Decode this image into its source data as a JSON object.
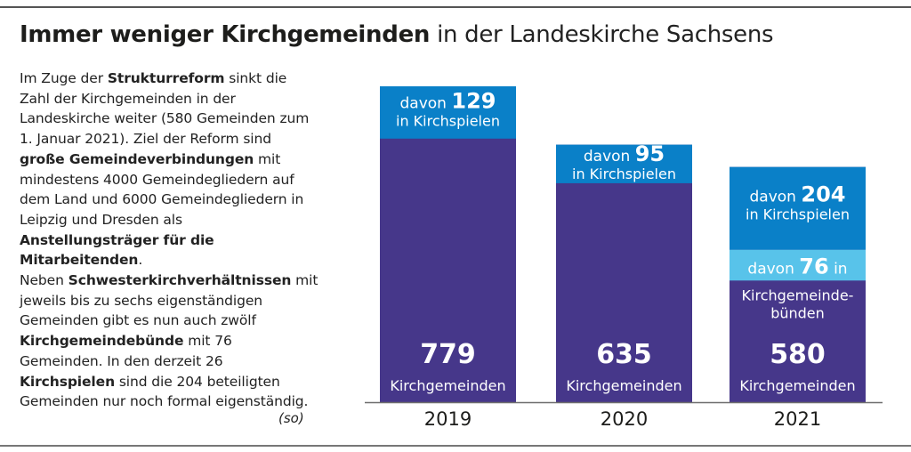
{
  "title": {
    "bold": "Immer weniger Kirchgemeinden",
    "light": "in der Landeskirche Sachsens"
  },
  "text": {
    "p1": [
      {
        "t": "Im Zuge der ",
        "b": false
      },
      {
        "t": "Strukturreform",
        "b": true
      },
      {
        "t": " sinkt die Zahl der Kirchgemeinden in der Landeskirche weiter (580 Gemeinden zum 1. Januar 2021). Ziel der Reform sind ",
        "b": false
      },
      {
        "t": "große Gemeindeverbindungen",
        "b": true
      },
      {
        "t": " mit mindestens 4000 Gemeinde­gliedern auf dem Land und 6000 Gemeindegliedern in Leipzig und Dresden als ",
        "b": false
      },
      {
        "t": "Anstellungsträger für die Mitarbeitenden",
        "b": true
      },
      {
        "t": ".",
        "b": false
      }
    ],
    "p2": [
      {
        "t": "Neben ",
        "b": false
      },
      {
        "t": "Schwesterkirchverhältnissen",
        "b": true
      },
      {
        "t": " mit jeweils bis zu sechs eigen­ständigen Gemeinden gibt es nun auch zwölf ",
        "b": false
      },
      {
        "t": "Kirchgemeindebünde",
        "b": true
      },
      {
        "t": " mit 76 Gemeinden. In den derzeit 26 ",
        "b": false
      },
      {
        "t": "Kirchspielen",
        "b": true
      },
      {
        "t": " sind die 204 betei­ligten Gemeinden nur noch formal eigenständig.",
        "b": false
      }
    ],
    "source": "(so)"
  },
  "colors": {
    "total": "#46378a",
    "kirchspiele": "#0a80c8",
    "kirchgemeindebuende": "#58c3ea",
    "axis": "#6e6e6e"
  },
  "chart_data": {
    "type": "bar",
    "categories": [
      "2019",
      "2020",
      "2021"
    ],
    "total_unit_label": "Kirchgemeinden",
    "series": [
      {
        "name": "Kirchgemeinden",
        "values": [
          779,
          635,
          580
        ]
      },
      {
        "name": "in Kirchspielen",
        "values": [
          129,
          95,
          204
        ]
      },
      {
        "name": "in Kirchgemeindebünden",
        "values": [
          null,
          null,
          76
        ]
      }
    ],
    "annotations": [
      {
        "year": "2019",
        "prefix": "davon",
        "value": "129",
        "suffix": "",
        "sub": "in Kirchspielen"
      },
      {
        "year": "2020",
        "prefix": "davon",
        "value": "95",
        "suffix": "",
        "sub": "in Kirchspielen"
      },
      {
        "year": "2021",
        "prefix": "davon",
        "value": "204",
        "suffix": "",
        "sub": "in Kirchspielen"
      },
      {
        "year": "2021",
        "prefix": "davon",
        "value": "76",
        "suffix": "in",
        "sub": "Kirchgemeinde-",
        "sub2": "bünden"
      }
    ]
  }
}
